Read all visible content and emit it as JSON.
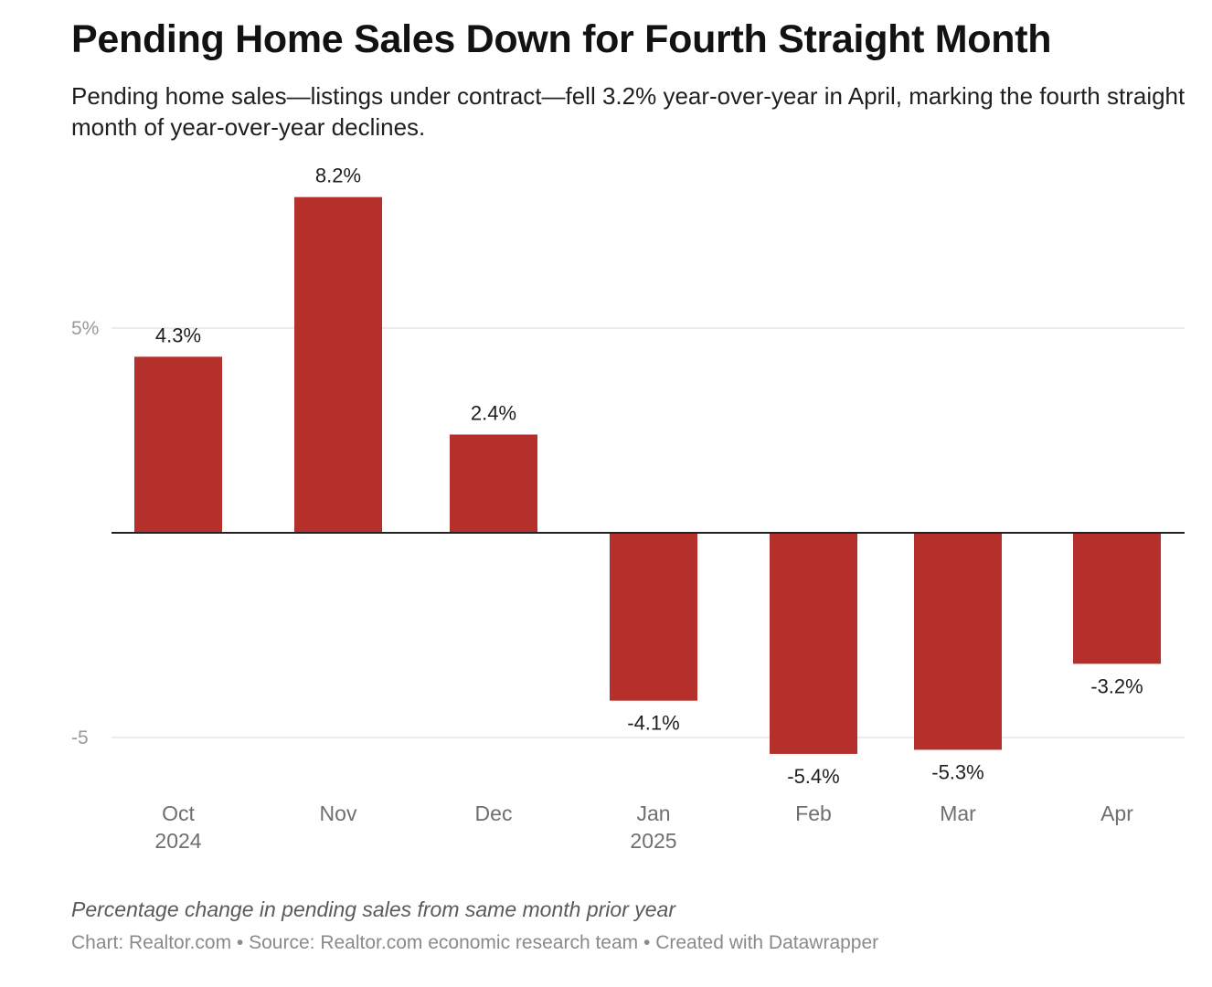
{
  "title": "Pending Home Sales Down for Fourth Straight Month",
  "subtitle": "Pending home sales—listings under contract—fell 3.2% year-over-year in April, marking the fourth straight month of year-over-year declines.",
  "notes": "Percentage change in pending sales from same month prior year",
  "credits": {
    "chart": "Chart: Realtor.com",
    "separator": "•",
    "source": "Source: Realtor.com economic research team",
    "created": "Created with Datawrapper"
  },
  "chart_data": {
    "type": "bar",
    "categories": [
      "Oct",
      "Nov",
      "Dec",
      "Jan",
      "Feb",
      "Mar",
      "Apr"
    ],
    "category_sublabels": [
      "2024",
      "",
      "",
      "2025",
      "",
      "",
      ""
    ],
    "values": [
      4.3,
      8.2,
      2.4,
      -4.1,
      -5.4,
      -5.3,
      -3.2
    ],
    "data_labels": [
      "4.3%",
      "8.2%",
      "2.4%",
      "-4.1%",
      "-5.4%",
      "-5.3%",
      "-3.2%"
    ],
    "y_ticks": [
      5,
      -5
    ],
    "y_tick_labels": [
      "5%",
      "-5"
    ],
    "ylim": [
      -6.2,
      9.0
    ],
    "grid": true,
    "bar_color": "#b5302a",
    "zero_line_color": "#222222",
    "grid_color": "#e6e6e6"
  }
}
